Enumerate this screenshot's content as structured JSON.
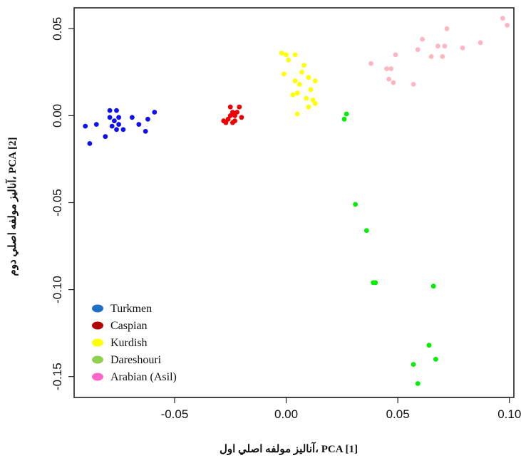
{
  "chart_data": {
    "type": "scatter",
    "title": "",
    "xlabel": "آنالیز مولفه اصلي اول، PCA [1]",
    "ylabel": "آناليز مولفه اصلي دوم، PCA [2]",
    "xlim": [
      -0.095,
      0.102
    ],
    "ylim": [
      -0.162,
      0.062
    ],
    "xticks": [
      -0.05,
      0.0,
      0.05,
      0.1
    ],
    "xtick_labels": [
      "-0.05",
      "0.00",
      "0.05",
      "0.10"
    ],
    "yticks": [
      0.05,
      0.0,
      -0.05,
      -0.1,
      -0.15
    ],
    "ytick_labels": [
      "0.05",
      "0.00",
      "-0.05",
      "-0.10",
      "-0.15"
    ],
    "grid": false,
    "legend_position": "bottom-left",
    "series": [
      {
        "name": "Turkmen",
        "legend_color": "#1f6fc5",
        "point_color": "#1010ee",
        "points": [
          [
            -0.09,
            -0.006
          ],
          [
            -0.088,
            -0.016
          ],
          [
            -0.085,
            -0.005
          ],
          [
            -0.081,
            -0.012
          ],
          [
            -0.079,
            0.003
          ],
          [
            -0.079,
            -0.001
          ],
          [
            -0.078,
            -0.006
          ],
          [
            -0.077,
            -0.003
          ],
          [
            -0.076,
            0.003
          ],
          [
            -0.076,
            -0.008
          ],
          [
            -0.075,
            -0.001
          ],
          [
            -0.075,
            -0.005
          ],
          [
            -0.073,
            -0.008
          ],
          [
            -0.069,
            -0.001
          ],
          [
            -0.066,
            -0.005
          ],
          [
            -0.063,
            -0.009
          ],
          [
            -0.062,
            -0.002
          ],
          [
            -0.059,
            0.002
          ]
        ]
      },
      {
        "name": "Caspian",
        "legend_color": "#b30000",
        "point_color": "#ee0000",
        "points": [
          [
            -0.028,
            -0.003
          ],
          [
            -0.027,
            -0.004
          ],
          [
            -0.026,
            -0.002
          ],
          [
            -0.025,
            0.0
          ],
          [
            -0.025,
            0.005
          ],
          [
            -0.024,
            -0.004
          ],
          [
            -0.024,
            0.002
          ],
          [
            -0.023,
            0.0
          ],
          [
            -0.023,
            -0.003
          ],
          [
            -0.022,
            0.002
          ],
          [
            -0.021,
            0.005
          ],
          [
            -0.02,
            -0.001
          ]
        ]
      },
      {
        "name": "Kurdish",
        "legend_color": "#ffff00",
        "point_color": "#ffff00",
        "points": [
          [
            -0.002,
            0.036
          ],
          [
            -0.001,
            0.024
          ],
          [
            0.0,
            0.035
          ],
          [
            0.001,
            0.032
          ],
          [
            0.003,
            0.012
          ],
          [
            0.004,
            0.02
          ],
          [
            0.004,
            0.035
          ],
          [
            0.005,
            0.013
          ],
          [
            0.005,
            0.001
          ],
          [
            0.006,
            0.018
          ],
          [
            0.007,
            0.025
          ],
          [
            0.008,
            0.029
          ],
          [
            0.009,
            0.01
          ],
          [
            0.01,
            0.005
          ],
          [
            0.01,
            0.022
          ],
          [
            0.011,
            0.015
          ],
          [
            0.012,
            0.009
          ],
          [
            0.013,
            0.02
          ],
          [
            0.013,
            0.007
          ]
        ]
      },
      {
        "name": "Dareshouri",
        "legend_color": "#8fd14f",
        "point_color": "#00ee00",
        "points": [
          [
            0.026,
            -0.002
          ],
          [
            0.027,
            0.001
          ],
          [
            0.031,
            -0.051
          ],
          [
            0.036,
            -0.066
          ],
          [
            0.039,
            -0.096
          ],
          [
            0.04,
            -0.096
          ],
          [
            0.057,
            -0.143
          ],
          [
            0.059,
            -0.154
          ],
          [
            0.064,
            -0.132
          ],
          [
            0.066,
            -0.098
          ],
          [
            0.067,
            -0.14
          ]
        ]
      },
      {
        "name": "Arabian (Asil)",
        "legend_color": "#ff66cc",
        "point_color": "#ffb6c1",
        "points": [
          [
            0.038,
            0.03
          ],
          [
            0.045,
            0.027
          ],
          [
            0.046,
            0.021
          ],
          [
            0.047,
            0.027
          ],
          [
            0.048,
            0.019
          ],
          [
            0.049,
            0.035
          ],
          [
            0.057,
            0.018
          ],
          [
            0.059,
            0.038
          ],
          [
            0.061,
            0.044
          ],
          [
            0.065,
            0.034
          ],
          [
            0.068,
            0.04
          ],
          [
            0.07,
            0.034
          ],
          [
            0.071,
            0.04
          ],
          [
            0.072,
            0.05
          ],
          [
            0.079,
            0.039
          ],
          [
            0.087,
            0.042
          ],
          [
            0.097,
            0.056
          ],
          [
            0.099,
            0.052
          ]
        ]
      }
    ]
  }
}
